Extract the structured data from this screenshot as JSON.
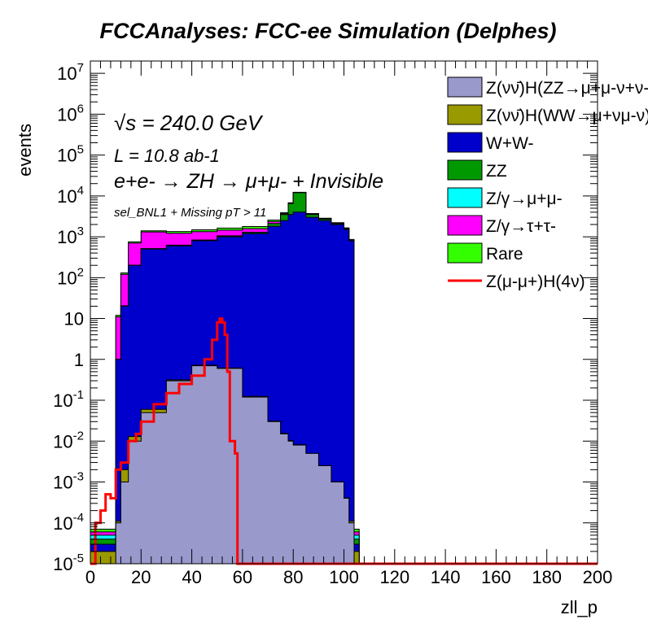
{
  "chart_data": {
    "type": "area",
    "title": "FCCAnalyses: FCC-ee Simulation (Delphes)",
    "xlabel": "zll_p",
    "ylabel": "events",
    "xlim": [
      0,
      200
    ],
    "ylim": [
      1e-05,
      20000000
    ],
    "log_y": true,
    "x_ticks": [
      "0",
      "20",
      "40",
      "60",
      "80",
      "100",
      "120",
      "140",
      "160",
      "180",
      "200"
    ],
    "y_ticks": [
      "10-5",
      "10-4",
      "10-3",
      "10-2",
      "10-1",
      "1",
      "10",
      "102",
      "103",
      "104",
      "105",
      "106",
      "107"
    ],
    "annotations": {
      "sqrt_s": "√s = 240.0 GeV",
      "lumi": "L = 10.8 ab-1",
      "process": "e+e- → ZH → μ+μ- + Invisible",
      "selection": "sel_BNL1 + Missing pT > 11"
    },
    "x": [
      0,
      10,
      12,
      15,
      20,
      30,
      40,
      50,
      60,
      70,
      75,
      78,
      80,
      85,
      90,
      95,
      100,
      102,
      104,
      106
    ],
    "series": [
      {
        "name": "Z(νν̄)H(ZZ→μ+μ-ν+ν-)",
        "color": "#9999cc",
        "values": [
          1e-05,
          0.0001,
          0.001,
          0.01,
          0.05,
          0.3,
          0.7,
          0.6,
          0.12,
          0.03,
          0.015,
          0.01,
          0.008,
          0.005,
          0.0025,
          0.001,
          0.0004,
          0.0001,
          1e-05,
          1e-05
        ]
      },
      {
        "name": "Z(νν̄)H(WW→μ+νμ-ν)",
        "color": "#999900",
        "values": [
          1e-05,
          1e-05,
          0.001,
          0.003,
          0.01,
          0.015,
          0.02,
          0.015,
          0.005,
          0.001,
          0.0005,
          0.0003,
          0.0002,
          1e-05,
          1e-05,
          1e-05,
          1e-05,
          1e-05,
          1e-05,
          1e-05
        ]
      },
      {
        "name": "W+W-",
        "color": "#0000cc",
        "values": [
          1e-05,
          1,
          20,
          200,
          500,
          600,
          800,
          1000,
          1200,
          1800,
          2500,
          3500,
          4000,
          3000,
          2500,
          2000,
          1500,
          800,
          1e-05,
          1e-05
        ]
      },
      {
        "name": "ZZ",
        "color": "#009900",
        "values": [
          1e-05,
          0,
          0,
          0,
          10,
          20,
          30,
          50,
          80,
          300,
          1000,
          3000,
          8000,
          500,
          200,
          100,
          80,
          20,
          1e-05,
          1e-05
        ]
      },
      {
        "name": "Z/γ→μ+μ-",
        "color": "#00ffff",
        "values": [
          1e-05,
          0.001,
          0.5,
          2,
          3,
          3,
          3,
          3,
          3,
          3,
          3,
          3,
          3,
          3,
          2,
          1,
          0.5,
          0.1,
          1e-05,
          1e-05
        ]
      },
      {
        "name": "Z/γ→τ+τ-",
        "color": "#ff00ff",
        "values": [
          1e-05,
          10,
          100,
          500,
          800,
          600,
          500,
          400,
          300,
          250,
          200,
          150,
          100,
          80,
          50,
          30,
          20,
          10,
          1e-05,
          1e-05
        ]
      },
      {
        "name": "Rare",
        "color": "#33ff00",
        "values": [
          1e-05,
          1,
          10,
          50,
          80,
          120,
          150,
          180,
          200,
          220,
          200,
          180,
          150,
          120,
          100,
          80,
          50,
          30,
          1e-05,
          1e-05
        ]
      },
      {
        "name": "Z(μ-μ+)H(4ν)",
        "color": "#ff0000",
        "type": "line",
        "x": [
          0,
          2,
          4,
          6,
          8,
          10,
          12,
          15,
          18,
          20,
          25,
          30,
          35,
          40,
          45,
          48,
          50,
          51,
          52,
          53,
          54,
          55,
          56,
          57,
          58,
          60,
          80,
          100,
          200
        ],
        "values": [
          1e-05,
          0.0001,
          0.0002,
          0.0005,
          0.0004,
          0.002,
          0.003,
          0.01,
          0.015,
          0.03,
          0.08,
          0.15,
          0.25,
          0.4,
          1,
          3,
          8,
          10,
          8,
          4,
          0.5,
          0.01,
          0.01,
          0.005,
          1e-05,
          1e-05,
          1e-05,
          1e-05,
          1e-05
        ]
      }
    ],
    "legend": {
      "placement": "top-right"
    }
  }
}
